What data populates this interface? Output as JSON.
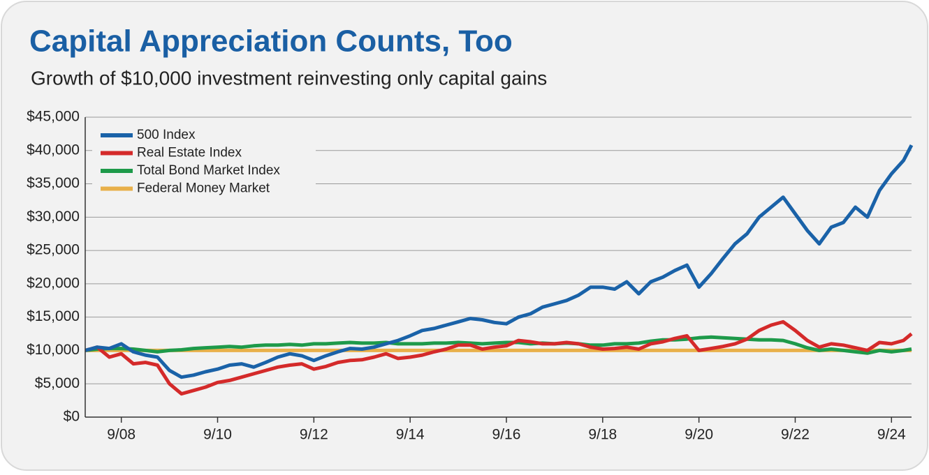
{
  "chart_data": {
    "type": "line",
    "title": "Capital Appreciation Counts, Too",
    "subtitle": "Growth of $10,000 investment reinvesting only capital gains",
    "x": [
      "12/07",
      "3/08",
      "6/08",
      "9/08",
      "12/08",
      "3/09",
      "6/09",
      "9/09",
      "12/09",
      "3/10",
      "6/10",
      "9/10",
      "12/10",
      "3/11",
      "6/11",
      "9/11",
      "12/11",
      "3/12",
      "6/12",
      "9/12",
      "12/12",
      "3/13",
      "6/13",
      "9/13",
      "12/13",
      "3/14",
      "6/14",
      "9/14",
      "12/14",
      "3/15",
      "6/15",
      "9/15",
      "12/15",
      "3/16",
      "6/16",
      "9/16",
      "12/16",
      "3/17",
      "6/17",
      "9/17",
      "12/17",
      "3/18",
      "6/18",
      "9/18",
      "12/18",
      "3/19",
      "6/19",
      "9/19",
      "12/19",
      "3/20",
      "6/20",
      "9/20",
      "12/20",
      "3/21",
      "6/21",
      "9/21",
      "12/21",
      "3/22",
      "6/22",
      "9/22",
      "12/22",
      "3/23",
      "6/23",
      "9/23",
      "12/23",
      "3/24",
      "6/24",
      "9/24",
      "12/24",
      "2/25"
    ],
    "xlim": [
      "12/07",
      "2/25"
    ],
    "xticks": [
      "9/08",
      "9/10",
      "9/12",
      "9/14",
      "9/16",
      "9/18",
      "9/20",
      "9/22",
      "9/24"
    ],
    "ylim": [
      0,
      45000
    ],
    "yticks": [
      {
        "value": 0,
        "label": "$0"
      },
      {
        "value": 5000,
        "label": "$5,000"
      },
      {
        "value": 10000,
        "label": "$10,000"
      },
      {
        "value": 15000,
        "label": "$15,000"
      },
      {
        "value": 20000,
        "label": "$20,000"
      },
      {
        "value": 25000,
        "label": "$25,000"
      },
      {
        "value": 30000,
        "label": "$30,000"
      },
      {
        "value": 35000,
        "label": "$35,000"
      },
      {
        "value": 40000,
        "label": "$40,000"
      },
      {
        "value": 45000,
        "label": "$45,000"
      }
    ],
    "grid": true,
    "legend": "upper left",
    "series": [
      {
        "name": "500 Index",
        "color": "#1a62a8",
        "values": [
          10000,
          10500,
          10300,
          11000,
          9800,
          9300,
          9000,
          7000,
          6000,
          6300,
          6800,
          7200,
          7800,
          8000,
          7500,
          8200,
          9000,
          9500,
          9200,
          8500,
          9200,
          9800,
          10300,
          10200,
          10500,
          11000,
          11500,
          12200,
          13000,
          13300,
          13800,
          14300,
          14800,
          14600,
          14200,
          14000,
          15000,
          15500,
          16500,
          17000,
          17500,
          18300,
          19500,
          19500,
          19200,
          20300,
          18500,
          20300,
          21000,
          22000,
          22800,
          19500,
          21500,
          23800,
          26000,
          27500,
          30000,
          31500,
          33000,
          30500,
          28000,
          26000,
          28500,
          29200,
          31500,
          30000,
          34000,
          36500,
          38500,
          40800
        ]
      },
      {
        "name": "Real Estate Index",
        "color": "#d42a2a",
        "values": [
          10000,
          10500,
          9000,
          9500,
          8000,
          8200,
          7800,
          5000,
          3500,
          4000,
          4500,
          5200,
          5500,
          6000,
          6500,
          7000,
          7500,
          7800,
          8000,
          7200,
          7600,
          8200,
          8500,
          8600,
          9000,
          9500,
          8800,
          9000,
          9300,
          9800,
          10200,
          10800,
          10800,
          10200,
          10500,
          10700,
          11500,
          11300,
          11000,
          11000,
          11200,
          11000,
          10500,
          10200,
          10300,
          10500,
          10200,
          11000,
          11300,
          11800,
          12200,
          10000,
          10300,
          10600,
          11000,
          11700,
          13000,
          13800,
          14300,
          13000,
          11500,
          10500,
          11000,
          10800,
          10400,
          10000,
          11200,
          11000,
          11500,
          12500
        ]
      },
      {
        "name": "Total Bond Market Index",
        "color": "#1e9a4a",
        "values": [
          10000,
          10200,
          10300,
          10300,
          10200,
          10000,
          9800,
          10000,
          10100,
          10300,
          10400,
          10500,
          10600,
          10500,
          10700,
          10800,
          10800,
          10900,
          10800,
          11000,
          11000,
          11100,
          11200,
          11100,
          11100,
          11200,
          11000,
          11000,
          11000,
          11100,
          11100,
          11200,
          11100,
          11000,
          11100,
          11200,
          11200,
          11000,
          11100,
          11000,
          11100,
          11000,
          10800,
          10800,
          11000,
          11000,
          11100,
          11400,
          11600,
          11600,
          11700,
          11900,
          12000,
          11900,
          11800,
          11700,
          11600,
          11600,
          11500,
          11000,
          10400,
          10000,
          10200,
          10000,
          9800,
          9600,
          10000,
          9800,
          10000,
          10200
        ]
      },
      {
        "name": "Federal Money Market",
        "color": "#e8b04a",
        "values": [
          10000,
          10000,
          10000,
          10000,
          10000,
          10000,
          10000,
          10000,
          10000,
          10000,
          10000,
          10000,
          10000,
          10000,
          10000,
          10000,
          10000,
          10000,
          10000,
          10000,
          10000,
          10000,
          10000,
          10000,
          10000,
          10000,
          10000,
          10000,
          10000,
          10000,
          10000,
          10000,
          10000,
          10000,
          10000,
          10000,
          10000,
          10000,
          10000,
          10000,
          10000,
          10000,
          10000,
          10000,
          10000,
          10000,
          10000,
          10000,
          10000,
          10000,
          10000,
          10000,
          10000,
          10000,
          10000,
          10000,
          10000,
          10000,
          10000,
          10000,
          10000,
          10000,
          10000,
          10000,
          10000,
          10000,
          10000,
          10000,
          10000,
          10000
        ]
      }
    ]
  }
}
